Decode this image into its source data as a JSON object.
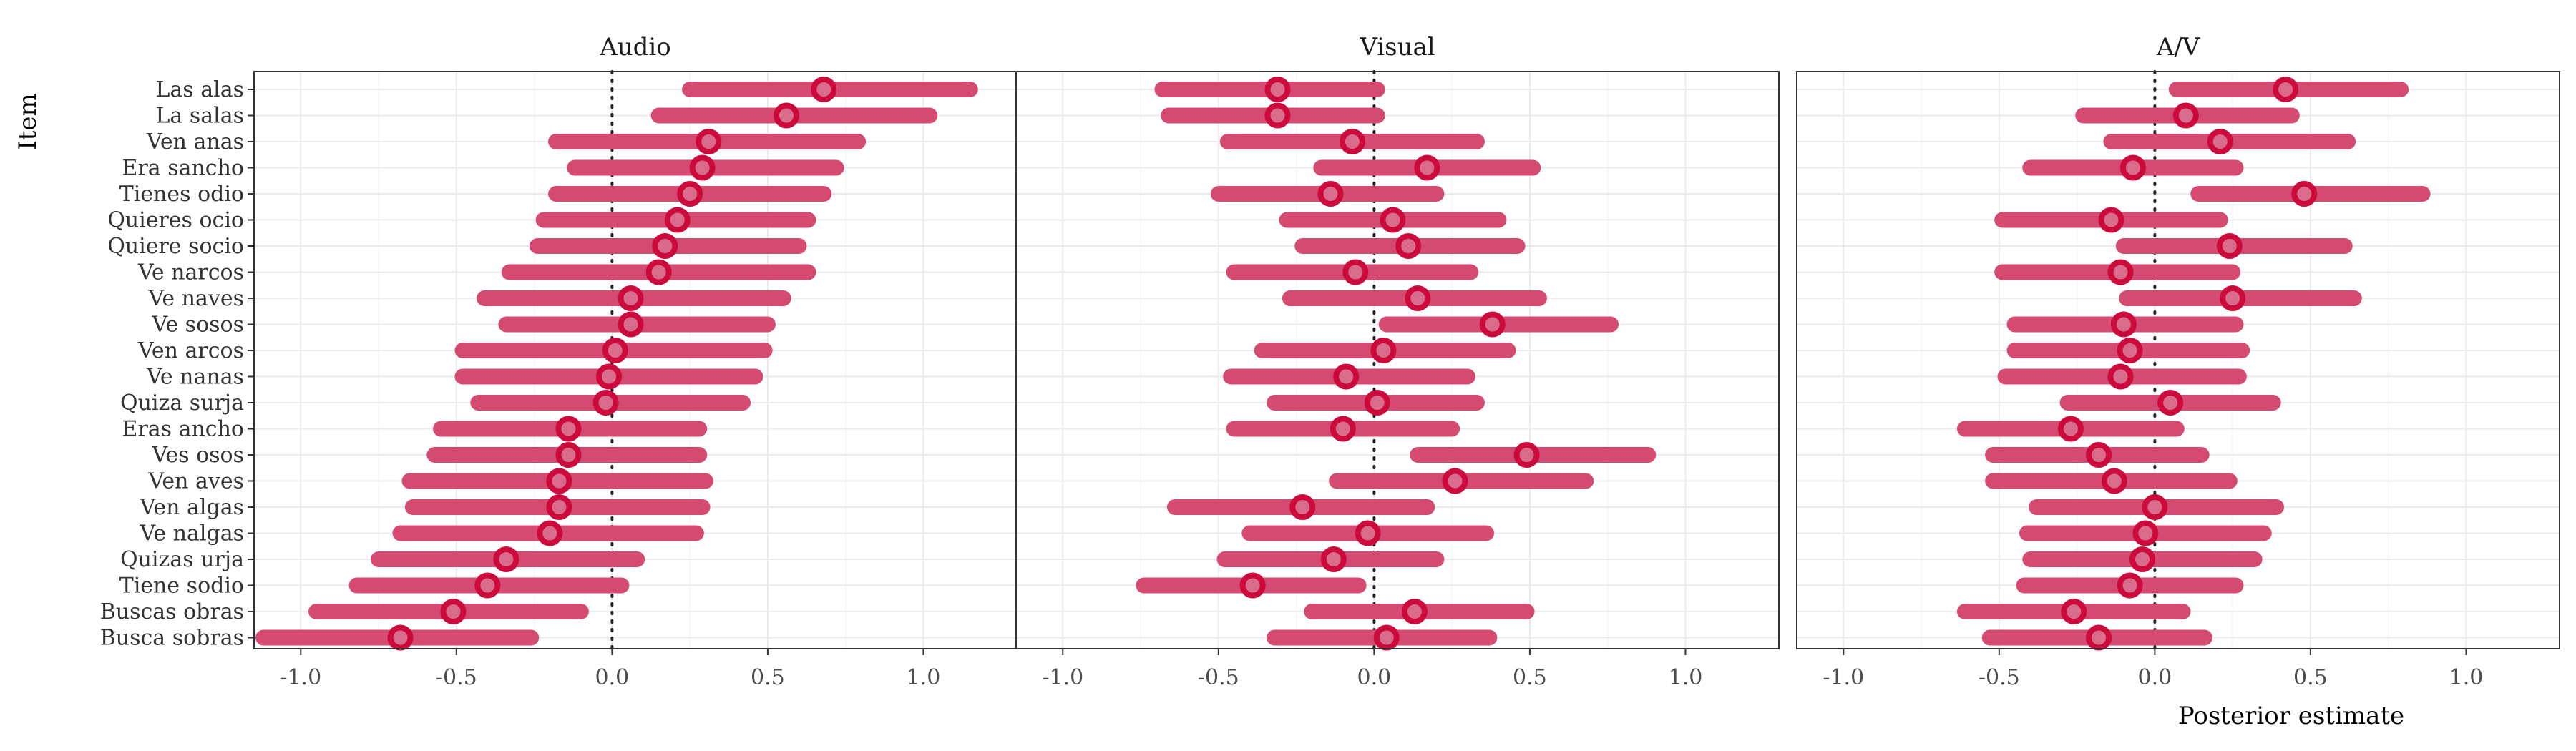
{
  "chart_data": {
    "type": "forest",
    "items": [
      "Las alas",
      "La salas",
      "Ven anas",
      "Era sancho",
      "Tienes odio",
      "Quieres ocio",
      "Quiere socio",
      "Ve narcos",
      "Ve naves",
      "Ve sosos",
      "Ven arcos",
      "Ve nanas",
      "Quiza surja",
      "Eras ancho",
      "Ves osos",
      "Ven aves",
      "Ven algas",
      "Ve nalgas",
      "Quizas urja",
      "Tiene sodio",
      "Buscas obras",
      "Busca sobras"
    ],
    "ylabel": "Item",
    "xlabel": "Posterior estimate",
    "xlim": [
      -1.15,
      1.3
    ],
    "xticks": [
      -1.0,
      -0.5,
      0.0,
      0.5,
      1.0
    ],
    "xtick_labels": [
      "-1.0",
      "-0.5",
      "0.0",
      "0.5",
      "1.0"
    ],
    "reference_line": 0,
    "grid": true,
    "panels": [
      {
        "title": "Audio",
        "estimates": [
          0.68,
          0.56,
          0.31,
          0.29,
          0.25,
          0.21,
          0.17,
          0.15,
          0.06,
          0.06,
          0.01,
          -0.01,
          -0.02,
          -0.14,
          -0.14,
          -0.17,
          -0.17,
          -0.2,
          -0.34,
          -0.4,
          -0.51,
          -0.68
        ],
        "lower": [
          0.25,
          0.15,
          -0.18,
          -0.12,
          -0.18,
          -0.22,
          -0.24,
          -0.33,
          -0.41,
          -0.34,
          -0.48,
          -0.48,
          -0.43,
          -0.55,
          -0.57,
          -0.65,
          -0.64,
          -0.68,
          -0.75,
          -0.82,
          -0.95,
          -1.12
        ],
        "upper": [
          1.15,
          1.02,
          0.79,
          0.72,
          0.68,
          0.63,
          0.6,
          0.63,
          0.55,
          0.5,
          0.49,
          0.46,
          0.42,
          0.28,
          0.28,
          0.3,
          0.29,
          0.27,
          0.08,
          0.03,
          -0.1,
          -0.26
        ]
      },
      {
        "title": "Visual",
        "estimates": [
          -0.31,
          -0.31,
          -0.07,
          0.17,
          -0.14,
          0.06,
          0.11,
          -0.06,
          0.14,
          0.38,
          0.03,
          -0.09,
          0.01,
          -0.1,
          0.49,
          0.26,
          -0.23,
          -0.02,
          -0.13,
          -0.39,
          0.13,
          0.04
        ],
        "lower": [
          -0.68,
          -0.66,
          -0.47,
          -0.17,
          -0.5,
          -0.28,
          -0.23,
          -0.45,
          -0.27,
          0.04,
          -0.36,
          -0.46,
          -0.32,
          -0.45,
          0.14,
          -0.12,
          -0.64,
          -0.4,
          -0.48,
          -0.74,
          -0.2,
          -0.32
        ],
        "upper": [
          0.01,
          0.01,
          0.33,
          0.51,
          0.2,
          0.4,
          0.46,
          0.31,
          0.53,
          0.76,
          0.43,
          0.3,
          0.33,
          0.25,
          0.88,
          0.68,
          0.17,
          0.36,
          0.2,
          -0.05,
          0.49,
          0.37
        ]
      },
      {
        "title": "A/V",
        "estimates": [
          0.42,
          0.1,
          0.21,
          -0.07,
          0.48,
          -0.14,
          0.24,
          -0.11,
          0.25,
          -0.1,
          -0.08,
          -0.11,
          0.05,
          -0.27,
          -0.18,
          -0.13,
          0.0,
          -0.03,
          -0.04,
          -0.08,
          -0.26,
          -0.18
        ],
        "lower": [
          0.07,
          -0.23,
          -0.14,
          -0.4,
          0.14,
          -0.49,
          -0.1,
          -0.49,
          -0.09,
          -0.45,
          -0.45,
          -0.48,
          -0.28,
          -0.61,
          -0.52,
          -0.52,
          -0.38,
          -0.41,
          -0.4,
          -0.42,
          -0.61,
          -0.53
        ],
        "upper": [
          0.79,
          0.44,
          0.62,
          0.26,
          0.86,
          0.21,
          0.61,
          0.25,
          0.64,
          0.26,
          0.28,
          0.27,
          0.38,
          0.07,
          0.15,
          0.24,
          0.39,
          0.35,
          0.32,
          0.26,
          0.09,
          0.16
        ]
      }
    ]
  }
}
